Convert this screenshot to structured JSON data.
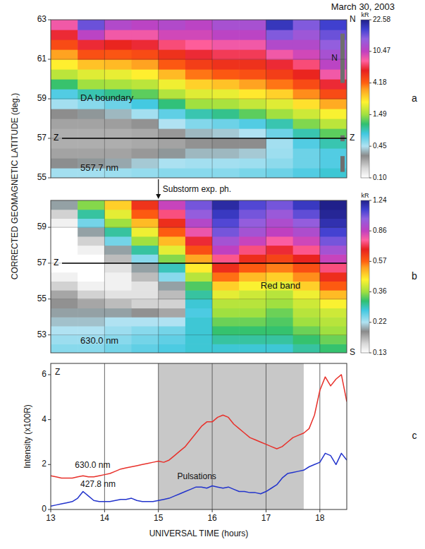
{
  "title": "March 30, 2003",
  "y_label": "CORRECTED GEOMAGNETIC LATITUDE (deg.)",
  "arrow_annotation": {
    "text": "Substorm exp. ph.",
    "x": 15
  },
  "chart_data": [
    {
      "type": "heatmap",
      "panel": "a",
      "xlim": [
        13,
        18.5
      ],
      "ylim": [
        55,
        63
      ],
      "xticks": [
        13,
        14,
        15,
        16,
        17,
        18
      ],
      "yticks": [
        55,
        57,
        59,
        61,
        63
      ],
      "tick_labels": "y",
      "grid": true,
      "x_edges": [
        13,
        13.5,
        14,
        14.5,
        15,
        15.5,
        16,
        16.5,
        17,
        17.5,
        18,
        18.5
      ],
      "y_edges": [
        55,
        55.5,
        56,
        56.5,
        57,
        57.5,
        58,
        58.5,
        59,
        59.5,
        60,
        60.5,
        61,
        61.5,
        62,
        62.5,
        63
      ],
      "values": [
        [
          0.5,
          0.35,
          0.3,
          0.28,
          0.28,
          0.3,
          0.34,
          0.5,
          0.8,
          1.2,
          1.8,
          2.6,
          3.6,
          5,
          7,
          9
        ],
        [
          0.5,
          0.36,
          0.3,
          0.28,
          0.28,
          0.3,
          0.36,
          0.6,
          1.0,
          1.5,
          2.2,
          3.2,
          4.8,
          7,
          11,
          17
        ],
        [
          0.52,
          0.38,
          0.3,
          0.28,
          0.28,
          0.31,
          0.4,
          0.7,
          1.1,
          1.6,
          2.3,
          3.3,
          4.6,
          6.5,
          9,
          12
        ],
        [
          0.55,
          0.42,
          0.32,
          0.29,
          0.29,
          0.33,
          0.5,
          0.85,
          1.3,
          1.8,
          2.6,
          3.6,
          5,
          7,
          9,
          11
        ],
        [
          0.6,
          0.47,
          0.36,
          0.3,
          0.32,
          0.45,
          0.75,
          1.15,
          1.7,
          2.4,
          3.3,
          4.5,
          6,
          8,
          10,
          12
        ],
        [
          0.6,
          0.5,
          0.4,
          0.33,
          0.4,
          0.62,
          1.0,
          1.5,
          2.2,
          3,
          4,
          5.5,
          7,
          8.5,
          10,
          11
        ],
        [
          0.6,
          0.5,
          0.4,
          0.34,
          0.42,
          0.7,
          1.1,
          1.6,
          2.3,
          3.2,
          4.5,
          6,
          7.5,
          9,
          11,
          13
        ],
        [
          0.65,
          0.52,
          0.42,
          0.34,
          0.45,
          0.8,
          1.3,
          1.9,
          2.7,
          3.6,
          4.8,
          6,
          7.5,
          9,
          11,
          13
        ],
        [
          0.7,
          0.58,
          0.52,
          0.5,
          0.7,
          1.0,
          1.5,
          2.2,
          3,
          4,
          5.5,
          7,
          9,
          12,
          16,
          20
        ],
        [
          0.8,
          0.7,
          0.7,
          0.8,
          1.0,
          1.4,
          2,
          2.8,
          3.8,
          5,
          6.5,
          8,
          10,
          12,
          14,
          16
        ],
        [
          0.9,
          0.8,
          0.8,
          1.0,
          1.3,
          1.8,
          2.5,
          3.5,
          5,
          7,
          9,
          11,
          13,
          15,
          17,
          19
        ]
      ],
      "colorbar": {
        "label": "kR",
        "range": [
          0.1,
          22.58
        ],
        "ticks": [
          {
            "value": 0.1,
            "label": "0.10"
          },
          0.45,
          1.49,
          4.18,
          10.47,
          22.58
        ]
      },
      "reference_line": {
        "label": "Z",
        "value": 57
      },
      "edge_labels": [
        {
          "text": "N",
          "y": 63
        },
        {
          "text": "Z",
          "y": 57
        }
      ],
      "zone_markers": [
        {
          "text": "N",
          "range": [
            59.8,
            62.3
          ]
        },
        {
          "range": [
            56.85,
            57.15
          ]
        },
        {
          "range": [
            55.3,
            56.1
          ]
        }
      ],
      "annotations": [
        {
          "text": "DA boundary",
          "x": 13.55,
          "y": 58.9
        },
        {
          "text": "557.7 nm",
          "x": 13.55,
          "y": 55.35
        }
      ]
    },
    {
      "type": "heatmap",
      "panel": "b",
      "xlim": [
        13,
        18.5
      ],
      "ylim": [
        52,
        60.5
      ],
      "xticks": [
        13,
        14,
        15,
        16,
        17,
        18
      ],
      "yticks": [
        53,
        55,
        57,
        59
      ],
      "tick_labels": "y",
      "grid": true,
      "x_edges": [
        13,
        13.5,
        14,
        14.5,
        15,
        15.5,
        16,
        16.5,
        17,
        17.5,
        18,
        18.5
      ],
      "y_edges": [
        52,
        52.5,
        53,
        53.5,
        54,
        54.5,
        55,
        55.5,
        56,
        56.5,
        57,
        57.5,
        58,
        58.5,
        59,
        59.5,
        60,
        60.5
      ],
      "values": [
        [
          0.24,
          0.23,
          0.22,
          0.21,
          0.2,
          0.19,
          0.18,
          0.16,
          0.14,
          0.13,
          0.13,
          0.13,
          0.13,
          0.13,
          0.14,
          0.16,
          0.2
        ],
        [
          0.24,
          0.23,
          0.22,
          0.21,
          0.2,
          0.18,
          0.16,
          0.14,
          0.13,
          0.13,
          0.13,
          0.14,
          0.16,
          0.2,
          0.25,
          0.3,
          0.35
        ],
        [
          0.25,
          0.24,
          0.23,
          0.22,
          0.2,
          0.17,
          0.15,
          0.14,
          0.14,
          0.15,
          0.17,
          0.2,
          0.25,
          0.3,
          0.36,
          0.42,
          0.48
        ],
        [
          0.26,
          0.25,
          0.24,
          0.22,
          0.19,
          0.16,
          0.15,
          0.15,
          0.17,
          0.2,
          0.24,
          0.3,
          0.36,
          0.43,
          0.5,
          0.58,
          0.65
        ],
        [
          0.27,
          0.26,
          0.25,
          0.22,
          0.18,
          0.16,
          0.17,
          0.2,
          0.24,
          0.29,
          0.35,
          0.42,
          0.5,
          0.58,
          0.66,
          0.75,
          0.85
        ],
        [
          0.28,
          0.28,
          0.28,
          0.28,
          0.27,
          0.28,
          0.3,
          0.33,
          0.38,
          0.45,
          0.52,
          0.6,
          0.7,
          0.8,
          0.9,
          1.0,
          1.05
        ],
        [
          0.28,
          0.3,
          0.32,
          0.34,
          0.36,
          0.38,
          0.42,
          0.48,
          0.56,
          0.66,
          0.76,
          0.86,
          0.95,
          1.05,
          1.1,
          1.15,
          1.2
        ],
        [
          0.28,
          0.3,
          0.32,
          0.34,
          0.36,
          0.38,
          0.4,
          0.44,
          0.5,
          0.58,
          0.66,
          0.75,
          0.85,
          0.95,
          1.0,
          1.05,
          1.1
        ],
        [
          0.28,
          0.3,
          0.32,
          0.33,
          0.34,
          0.36,
          0.38,
          0.42,
          0.48,
          0.55,
          0.62,
          0.7,
          0.78,
          0.86,
          0.92,
          0.98,
          1.05
        ],
        [
          0.3,
          0.32,
          0.34,
          0.36,
          0.38,
          0.4,
          0.43,
          0.48,
          0.54,
          0.6,
          0.68,
          0.76,
          0.84,
          0.92,
          1.0,
          1.08,
          1.15
        ],
        [
          0.32,
          0.34,
          0.36,
          0.38,
          0.4,
          0.44,
          0.5,
          0.58,
          0.66,
          0.75,
          0.85,
          0.95,
          1.05,
          1.12,
          1.18,
          1.22,
          1.24
        ]
      ],
      "colorbar": {
        "label": "kR",
        "range": [
          0.13,
          1.24
        ],
        "ticks": [
          0.13,
          0.22,
          0.36,
          0.57,
          0.86,
          1.24
        ]
      },
      "reference_line": {
        "label": "Z",
        "value": 57
      },
      "edge_labels": [
        {
          "text": "S",
          "y": 52
        }
      ],
      "annotations": [
        {
          "text": "Red band",
          "x": 16.9,
          "y": 55.6
        },
        {
          "text": "630.0 nm",
          "x": 13.55,
          "y": 52.5
        }
      ]
    },
    {
      "type": "line",
      "panel": "c",
      "xlim": [
        13,
        18.5
      ],
      "ylim": [
        0,
        6.5
      ],
      "xticks": [
        13,
        14,
        15,
        16,
        17,
        18
      ],
      "yticks": [
        0,
        2,
        4,
        6
      ],
      "grid": true,
      "x_label": "UNIVERSAL TIME (hours)",
      "y_label": "Intensity (x100R)",
      "x": [
        13.0,
        13.1,
        13.2,
        13.3,
        13.4,
        13.5,
        13.6,
        13.7,
        13.8,
        13.9,
        14.0,
        14.1,
        14.2,
        14.3,
        14.4,
        14.5,
        14.6,
        14.7,
        14.8,
        14.9,
        15.0,
        15.1,
        15.2,
        15.3,
        15.4,
        15.5,
        15.6,
        15.7,
        15.8,
        15.9,
        16.0,
        16.1,
        16.2,
        16.3,
        16.4,
        16.5,
        16.6,
        16.7,
        16.8,
        16.9,
        17.0,
        17.1,
        17.2,
        17.3,
        17.4,
        17.5,
        17.6,
        17.7,
        17.8,
        17.9,
        18.0,
        18.1,
        18.2,
        18.3,
        18.4,
        18.5
      ],
      "series": [
        {
          "name": "630.0 nm",
          "color": "#e8302a",
          "label_x": 13.45,
          "label_y": 1.85,
          "values": [
            1.5,
            1.45,
            1.4,
            1.4,
            1.4,
            1.45,
            1.5,
            1.45,
            1.45,
            1.5,
            1.55,
            1.6,
            1.7,
            1.8,
            1.85,
            1.9,
            1.95,
            2.0,
            2.05,
            2.1,
            2.15,
            2.1,
            2.2,
            2.4,
            2.6,
            2.8,
            3.1,
            3.4,
            3.7,
            3.9,
            3.9,
            4.1,
            4.2,
            4.1,
            3.8,
            3.6,
            3.4,
            3.2,
            3.1,
            3.0,
            2.9,
            2.8,
            2.7,
            2.8,
            3.0,
            3.2,
            3.3,
            3.4,
            3.6,
            4.2,
            5.3,
            5.9,
            5.5,
            5.8,
            6.0,
            4.8
          ]
        },
        {
          "name": "427.8 nm",
          "color": "#2233cc",
          "label_x": 13.55,
          "label_y": 1.0,
          "values": [
            0.15,
            0.2,
            0.25,
            0.3,
            0.35,
            0.5,
            0.8,
            0.6,
            0.4,
            0.35,
            0.35,
            0.35,
            0.4,
            0.45,
            0.45,
            0.5,
            0.4,
            0.35,
            0.35,
            0.35,
            0.4,
            0.45,
            0.5,
            0.6,
            0.7,
            0.8,
            0.9,
            1.0,
            1.0,
            0.95,
            1.05,
            1.0,
            0.95,
            1.0,
            0.9,
            0.8,
            0.8,
            0.75,
            0.75,
            0.7,
            0.8,
            0.95,
            1.1,
            1.4,
            1.6,
            1.65,
            1.7,
            1.75,
            1.9,
            2.0,
            2.1,
            2.5,
            2.4,
            2.0,
            2.5,
            2.2
          ]
        }
      ],
      "shaded_interval": [
        15,
        17.7
      ],
      "annotations": [
        {
          "text": "Pulsations",
          "x": 15.35,
          "y": 1.35
        },
        {
          "text": "Z",
          "x": 13.08,
          "y": 6.0
        }
      ]
    }
  ]
}
